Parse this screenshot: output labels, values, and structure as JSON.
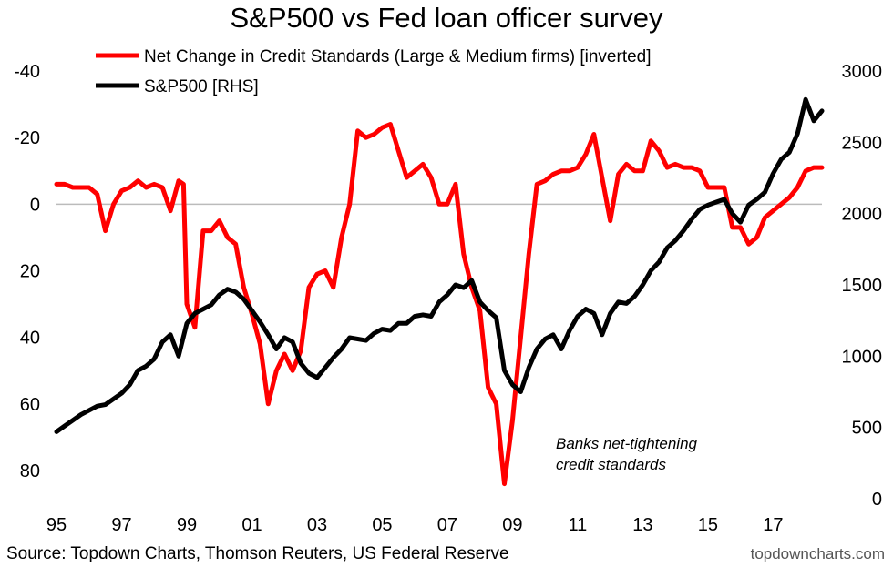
{
  "chart_data": {
    "type": "line",
    "title": "S&P500 vs Fed loan officer survey",
    "x_tick_labels": [
      "95",
      "97",
      "99",
      "01",
      "03",
      "05",
      "07",
      "09",
      "11",
      "13",
      "15",
      "17"
    ],
    "x_range": [
      1995.0,
      2018.5
    ],
    "left_axis": {
      "ticks": [
        "-40",
        "-20",
        "0",
        "20",
        "40",
        "60",
        "80"
      ],
      "tick_values": [
        -40,
        -20,
        0,
        20,
        40,
        60,
        80
      ],
      "range": [
        -40,
        80
      ],
      "inverted": true
    },
    "right_axis": {
      "ticks": [
        "3000",
        "2500",
        "2000",
        "1500",
        "1000",
        "500",
        "0"
      ],
      "tick_values": [
        3000,
        2500,
        2000,
        1500,
        1000,
        500,
        0
      ],
      "range": [
        0,
        3000
      ]
    },
    "series": [
      {
        "name": "Net Change in Credit Standards (Large & Medium firms) [inverted]",
        "axis": "left",
        "color": "#ff0000",
        "points": [
          [
            1995.0,
            -6
          ],
          [
            1995.25,
            -6
          ],
          [
            1995.5,
            -5
          ],
          [
            1995.75,
            -5
          ],
          [
            1996.0,
            -5
          ],
          [
            1996.25,
            -3
          ],
          [
            1996.5,
            8
          ],
          [
            1996.75,
            0
          ],
          [
            1997.0,
            -4
          ],
          [
            1997.25,
            -5
          ],
          [
            1997.5,
            -7
          ],
          [
            1997.75,
            -5
          ],
          [
            1998.0,
            -6
          ],
          [
            1998.25,
            -5
          ],
          [
            1998.5,
            2
          ],
          [
            1998.75,
            -7
          ],
          [
            1998.9,
            -6
          ],
          [
            1999.0,
            30
          ],
          [
            1999.25,
            37
          ],
          [
            1999.5,
            8
          ],
          [
            1999.75,
            8
          ],
          [
            2000.0,
            5
          ],
          [
            2000.25,
            10
          ],
          [
            2000.5,
            12
          ],
          [
            2000.75,
            25
          ],
          [
            2001.0,
            33
          ],
          [
            2001.25,
            42
          ],
          [
            2001.5,
            60
          ],
          [
            2001.75,
            50
          ],
          [
            2002.0,
            45
          ],
          [
            2002.25,
            50
          ],
          [
            2002.5,
            44
          ],
          [
            2002.75,
            25
          ],
          [
            2003.0,
            21
          ],
          [
            2003.25,
            20
          ],
          [
            2003.5,
            25
          ],
          [
            2003.75,
            10
          ],
          [
            2004.0,
            0
          ],
          [
            2004.25,
            -22
          ],
          [
            2004.5,
            -20
          ],
          [
            2004.75,
            -21
          ],
          [
            2005.0,
            -23
          ],
          [
            2005.25,
            -24
          ],
          [
            2005.5,
            -16
          ],
          [
            2005.75,
            -8
          ],
          [
            2006.0,
            -10
          ],
          [
            2006.25,
            -12
          ],
          [
            2006.5,
            -8
          ],
          [
            2006.75,
            0
          ],
          [
            2007.0,
            0
          ],
          [
            2007.25,
            -6
          ],
          [
            2007.5,
            15
          ],
          [
            2007.75,
            25
          ],
          [
            2008.0,
            32
          ],
          [
            2008.25,
            55
          ],
          [
            2008.5,
            60
          ],
          [
            2008.75,
            84
          ],
          [
            2009.0,
            65
          ],
          [
            2009.25,
            40
          ],
          [
            2009.5,
            15
          ],
          [
            2009.75,
            -6
          ],
          [
            2010.0,
            -7
          ],
          [
            2010.25,
            -9
          ],
          [
            2010.5,
            -10
          ],
          [
            2010.75,
            -10
          ],
          [
            2011.0,
            -11
          ],
          [
            2011.25,
            -15
          ],
          [
            2011.5,
            -21
          ],
          [
            2011.75,
            -8
          ],
          [
            2012.0,
            5
          ],
          [
            2012.25,
            -9
          ],
          [
            2012.5,
            -12
          ],
          [
            2012.75,
            -10
          ],
          [
            2013.0,
            -10
          ],
          [
            2013.25,
            -19
          ],
          [
            2013.5,
            -16
          ],
          [
            2013.75,
            -11
          ],
          [
            2014.0,
            -12
          ],
          [
            2014.25,
            -11
          ],
          [
            2014.5,
            -11
          ],
          [
            2014.75,
            -10
          ],
          [
            2015.0,
            -5
          ],
          [
            2015.25,
            -5
          ],
          [
            2015.5,
            -5
          ],
          [
            2015.75,
            7
          ],
          [
            2016.0,
            7
          ],
          [
            2016.25,
            12
          ],
          [
            2016.5,
            10
          ],
          [
            2016.75,
            4
          ],
          [
            2017.0,
            2
          ],
          [
            2017.25,
            0
          ],
          [
            2017.5,
            -2
          ],
          [
            2017.75,
            -5
          ],
          [
            2018.0,
            -10
          ],
          [
            2018.25,
            -11
          ],
          [
            2018.5,
            -11
          ]
        ]
      },
      {
        "name": "S&P500 [RHS]",
        "axis": "right",
        "color": "#000000",
        "points": [
          [
            1995.0,
            470
          ],
          [
            1995.25,
            510
          ],
          [
            1995.5,
            550
          ],
          [
            1995.75,
            590
          ],
          [
            1996.0,
            620
          ],
          [
            1996.25,
            650
          ],
          [
            1996.5,
            660
          ],
          [
            1996.75,
            700
          ],
          [
            1997.0,
            740
          ],
          [
            1997.25,
            800
          ],
          [
            1997.5,
            900
          ],
          [
            1997.75,
            930
          ],
          [
            1998.0,
            980
          ],
          [
            1998.25,
            1100
          ],
          [
            1998.5,
            1150
          ],
          [
            1998.75,
            1000
          ],
          [
            1999.0,
            1230
          ],
          [
            1999.25,
            1300
          ],
          [
            1999.5,
            1330
          ],
          [
            1999.75,
            1360
          ],
          [
            2000.0,
            1430
          ],
          [
            2000.25,
            1470
          ],
          [
            2000.5,
            1450
          ],
          [
            2000.75,
            1400
          ],
          [
            2001.0,
            1320
          ],
          [
            2001.25,
            1240
          ],
          [
            2001.5,
            1150
          ],
          [
            2001.75,
            1050
          ],
          [
            2002.0,
            1130
          ],
          [
            2002.25,
            1100
          ],
          [
            2002.5,
            950
          ],
          [
            2002.75,
            880
          ],
          [
            2003.0,
            850
          ],
          [
            2003.25,
            920
          ],
          [
            2003.5,
            990
          ],
          [
            2003.75,
            1050
          ],
          [
            2004.0,
            1130
          ],
          [
            2004.25,
            1120
          ],
          [
            2004.5,
            1110
          ],
          [
            2004.75,
            1160
          ],
          [
            2005.0,
            1190
          ],
          [
            2005.25,
            1180
          ],
          [
            2005.5,
            1230
          ],
          [
            2005.75,
            1230
          ],
          [
            2006.0,
            1280
          ],
          [
            2006.25,
            1290
          ],
          [
            2006.5,
            1280
          ],
          [
            2006.75,
            1380
          ],
          [
            2007.0,
            1430
          ],
          [
            2007.25,
            1500
          ],
          [
            2007.5,
            1480
          ],
          [
            2007.75,
            1530
          ],
          [
            2008.0,
            1380
          ],
          [
            2008.25,
            1320
          ],
          [
            2008.5,
            1270
          ],
          [
            2008.75,
            900
          ],
          [
            2009.0,
            800
          ],
          [
            2009.25,
            750
          ],
          [
            2009.5,
            920
          ],
          [
            2009.75,
            1050
          ],
          [
            2010.0,
            1120
          ],
          [
            2010.25,
            1150
          ],
          [
            2010.5,
            1050
          ],
          [
            2010.75,
            1180
          ],
          [
            2011.0,
            1280
          ],
          [
            2011.25,
            1330
          ],
          [
            2011.5,
            1300
          ],
          [
            2011.75,
            1150
          ],
          [
            2012.0,
            1300
          ],
          [
            2012.25,
            1380
          ],
          [
            2012.5,
            1370
          ],
          [
            2012.75,
            1420
          ],
          [
            2013.0,
            1500
          ],
          [
            2013.25,
            1600
          ],
          [
            2013.5,
            1660
          ],
          [
            2013.75,
            1760
          ],
          [
            2014.0,
            1810
          ],
          [
            2014.25,
            1880
          ],
          [
            2014.5,
            1960
          ],
          [
            2014.75,
            2030
          ],
          [
            2015.0,
            2060
          ],
          [
            2015.25,
            2080
          ],
          [
            2015.5,
            2100
          ],
          [
            2015.75,
            2000
          ],
          [
            2016.0,
            1940
          ],
          [
            2016.25,
            2060
          ],
          [
            2016.5,
            2100
          ],
          [
            2016.75,
            2150
          ],
          [
            2017.0,
            2280
          ],
          [
            2017.25,
            2380
          ],
          [
            2017.5,
            2430
          ],
          [
            2017.75,
            2560
          ],
          [
            2018.0,
            2800
          ],
          [
            2018.25,
            2650
          ],
          [
            2018.5,
            2720
          ]
        ]
      }
    ],
    "annotation": [
      "Banks net-tightening",
      "credit standards"
    ],
    "grid": false,
    "legend_position": "top-left"
  },
  "footer": {
    "source": "Source: Topdown Charts, Thomson Reuters, US Federal Reserve",
    "brand": "topdowncharts.com"
  }
}
